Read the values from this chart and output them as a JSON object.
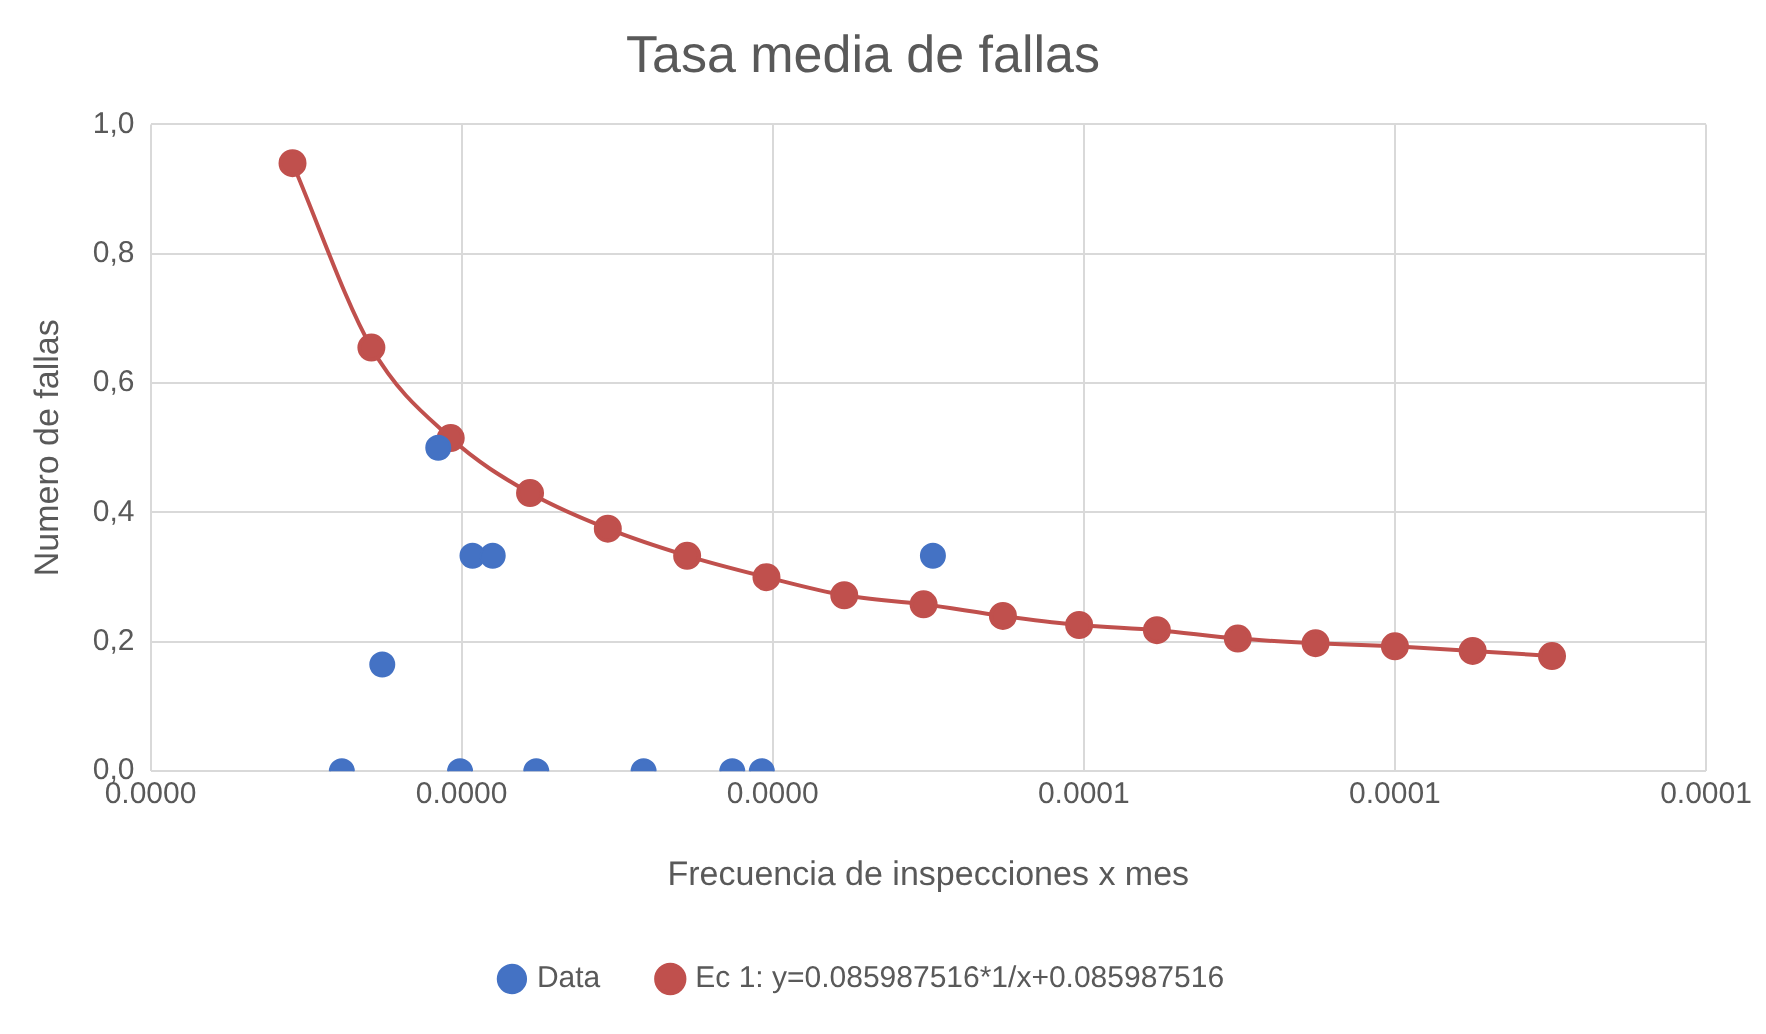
{
  "chart_data": {
    "type": "scatter",
    "title": "Tasa media de fallas",
    "xlabel": "Frecuencia de inspecciones x mes",
    "ylabel": "Numero de fallas",
    "xlim": [
      0,
      0.0001
    ],
    "xticks": [
      {
        "value": 0,
        "label": "0.0000"
      },
      {
        "value": 2e-05,
        "label": "0.0000"
      },
      {
        "value": 4e-05,
        "label": "0.0000"
      },
      {
        "value": 6e-05,
        "label": "0.0001"
      },
      {
        "value": 8e-05,
        "label": "0.0001"
      },
      {
        "value": 0.0001,
        "label": "0.0001"
      }
    ],
    "ylim": [
      0,
      1
    ],
    "yticks": [
      {
        "value": 0,
        "label": "0,0"
      },
      {
        "value": 0.2,
        "label": "0,2"
      },
      {
        "value": 0.4,
        "label": "0,4"
      },
      {
        "value": 0.6,
        "label": "0,6"
      },
      {
        "value": 0.8,
        "label": "0,8"
      },
      {
        "value": 1,
        "label": "1,0"
      }
    ],
    "grid": true,
    "legend": "bottom",
    "marker": "circle",
    "series": [
      {
        "name": "Data",
        "type": "scatter",
        "color": "#4472c4",
        "x": [
          1.23e-05,
          1.49e-05,
          1.85e-05,
          1.99e-05,
          2.07e-05,
          2.2e-05,
          2.48e-05,
          3.17e-05,
          3.74e-05,
          3.93e-05,
          5.03e-05
        ],
        "values": [
          0,
          0.165,
          0.5,
          0,
          0.333,
          0.333,
          0,
          0,
          0,
          0,
          0.333
        ]
      },
      {
        "name": "Ec 1: y=0.085987516*1/x+0.085987516",
        "type": "line",
        "color": "#c0504d",
        "line_style": "solid",
        "x": [
          9.13e-06,
          1.42e-05,
          1.93e-05,
          2.44e-05,
          2.94e-05,
          3.45e-05,
          3.96e-05,
          4.46e-05,
          4.97e-05,
          5.48e-05,
          5.97e-05,
          6.47e-05,
          6.99e-05,
          7.49e-05,
          8e-05,
          8.5e-05,
          9.01e-05
        ],
        "values": [
          0.94,
          0.655,
          0.515,
          0.43,
          0.375,
          0.333,
          0.3,
          0.272,
          0.258,
          0.24,
          0.226,
          0.218,
          0.205,
          0.198,
          0.193,
          0.186,
          0.178
        ]
      }
    ]
  }
}
